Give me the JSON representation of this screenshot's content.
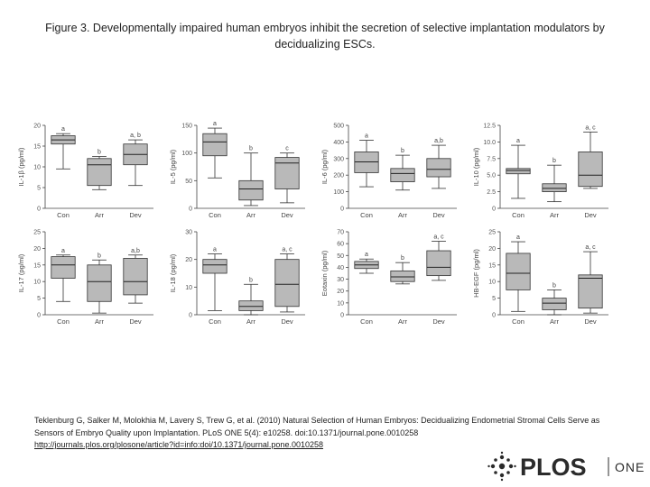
{
  "title": "Figure 3. Developmentally impaired human embryos inhibit the secretion of selective implantation modulators by decidualizing ESCs.",
  "citation": {
    "text": "Teklenburg G, Salker M, Molokhia M, Lavery S, Trew G, et al. (2010) Natural Selection of Human Embryos: Decidualizing Endometrial Stromal Cells Serve as Sensors of Embryo Quality upon Implantation. PLoS ONE 5(4): e10258. doi:10.1371/journal.pone.0010258",
    "link": "http://journals.plos.org/plosone/article?id=info:doi/10.1371/journal.pone.0010258"
  },
  "logo": {
    "name": "PLOS",
    "suffix": "ONE"
  },
  "chart_data": [
    {
      "type": "box",
      "ylabel": "IL-1β (pg/ml)",
      "ylim": [
        0,
        20
      ],
      "yticks": [
        "0",
        "5",
        "10",
        "15",
        "20"
      ],
      "categories": [
        "Con",
        "Arr",
        "Dev"
      ],
      "boxes": [
        {
          "min": 9.5,
          "q1": 15.5,
          "median": 16.5,
          "q3": 17.5,
          "max": 18,
          "label": "a"
        },
        {
          "min": 4.5,
          "q1": 5.5,
          "median": 10.5,
          "q3": 12,
          "max": 12.5,
          "label": "b"
        },
        {
          "min": 5.5,
          "q1": 10.5,
          "median": 13,
          "q3": 15.5,
          "max": 16.5,
          "label": "a, b"
        }
      ]
    },
    {
      "type": "box",
      "ylabel": "IL-5 (pg/ml)",
      "ylim": [
        0,
        150
      ],
      "yticks": [
        "0",
        "50",
        "100",
        "150"
      ],
      "categories": [
        "Con",
        "Arr",
        "Dev"
      ],
      "boxes": [
        {
          "min": 55,
          "q1": 95,
          "median": 120,
          "q3": 135,
          "max": 145,
          "label": "a"
        },
        {
          "min": 5,
          "q1": 15,
          "median": 35,
          "q3": 50,
          "max": 100,
          "label": "b"
        },
        {
          "min": 10,
          "q1": 35,
          "median": 82,
          "q3": 92,
          "max": 100,
          "label": "c"
        }
      ]
    },
    {
      "type": "box",
      "ylabel": "IL-6 (pg/ml)",
      "ylim": [
        0,
        500
      ],
      "yticks": [
        "0",
        "100",
        "200",
        "300",
        "400",
        "500"
      ],
      "categories": [
        "Con",
        "Arr",
        "Dev"
      ],
      "boxes": [
        {
          "min": 130,
          "q1": 215,
          "median": 280,
          "q3": 340,
          "max": 410,
          "label": "a"
        },
        {
          "min": 110,
          "q1": 160,
          "median": 210,
          "q3": 240,
          "max": 320,
          "label": "b"
        },
        {
          "min": 120,
          "q1": 190,
          "median": 235,
          "q3": 300,
          "max": 380,
          "label": "a,b"
        }
      ]
    },
    {
      "type": "box",
      "ylabel": "IL-10 (pg/ml)",
      "ylim": [
        0,
        12.5
      ],
      "yticks": [
        "0",
        "2.5",
        "5.0",
        "7.5",
        "10.0",
        "12.5"
      ],
      "categories": [
        "Con",
        "Arr",
        "Dev"
      ],
      "boxes": [
        {
          "min": 1.5,
          "q1": 5.2,
          "median": 5.7,
          "q3": 6,
          "max": 9.5,
          "label": "a"
        },
        {
          "min": 1,
          "q1": 2.5,
          "median": 3,
          "q3": 3.7,
          "max": 6.5,
          "label": "b"
        },
        {
          "min": 3,
          "q1": 3.3,
          "median": 5,
          "q3": 8.5,
          "max": 11.5,
          "label": "a, c"
        }
      ]
    },
    {
      "type": "box",
      "ylabel": "IL-17 (pg/ml)",
      "ylim": [
        0,
        25
      ],
      "yticks": [
        "0",
        "5",
        "10",
        "15",
        "20",
        "25"
      ],
      "categories": [
        "Con",
        "Arr",
        "Dev"
      ],
      "boxes": [
        {
          "min": 4,
          "q1": 11,
          "median": 15,
          "q3": 17.5,
          "max": 18,
          "label": "a"
        },
        {
          "min": 0.5,
          "q1": 4,
          "median": 10,
          "q3": 15,
          "max": 16.5,
          "label": "b"
        },
        {
          "min": 3.5,
          "q1": 6,
          "median": 10,
          "q3": 17,
          "max": 18,
          "label": "a,b"
        }
      ]
    },
    {
      "type": "box",
      "ylabel": "IL-18 (pg/ml)",
      "ylim": [
        0,
        30
      ],
      "yticks": [
        "0",
        "10",
        "20",
        "30"
      ],
      "categories": [
        "Con",
        "Arr",
        "Dev"
      ],
      "boxes": [
        {
          "min": 1.5,
          "q1": 15,
          "median": 18,
          "q3": 20,
          "max": 22,
          "label": "a"
        },
        {
          "min": 0,
          "q1": 1.5,
          "median": 3,
          "q3": 5,
          "max": 11,
          "label": "b"
        },
        {
          "min": 1,
          "q1": 3,
          "median": 11,
          "q3": 20,
          "max": 22,
          "label": "a, c"
        }
      ]
    },
    {
      "type": "box",
      "ylabel": "Eotaxin (pg/ml)",
      "ylim": [
        0,
        70
      ],
      "yticks": [
        "0",
        "10",
        "20",
        "30",
        "40",
        "50",
        "60",
        "70"
      ],
      "categories": [
        "Con",
        "Arr",
        "Dev"
      ],
      "boxes": [
        {
          "min": 35,
          "q1": 39,
          "median": 42,
          "q3": 45,
          "max": 47,
          "label": "a"
        },
        {
          "min": 26,
          "q1": 28,
          "median": 32,
          "q3": 37,
          "max": 44,
          "label": "b"
        },
        {
          "min": 29,
          "q1": 33,
          "median": 40,
          "q3": 54,
          "max": 62,
          "label": "a, c"
        }
      ]
    },
    {
      "type": "box",
      "ylabel": "HB-EGF (pg/ml)",
      "ylim": [
        0,
        25
      ],
      "yticks": [
        "0",
        "5",
        "10",
        "15",
        "20",
        "25"
      ],
      "categories": [
        "Con",
        "Arr",
        "Dev"
      ],
      "boxes": [
        {
          "min": 1,
          "q1": 7.5,
          "median": 12.5,
          "q3": 18.5,
          "max": 22,
          "label": "a"
        },
        {
          "min": 0,
          "q1": 1.5,
          "median": 3.5,
          "q3": 5,
          "max": 7.5,
          "label": "b"
        },
        {
          "min": 0.5,
          "q1": 2,
          "median": 11,
          "q3": 12,
          "max": 19,
          "label": "a, c"
        }
      ]
    }
  ]
}
